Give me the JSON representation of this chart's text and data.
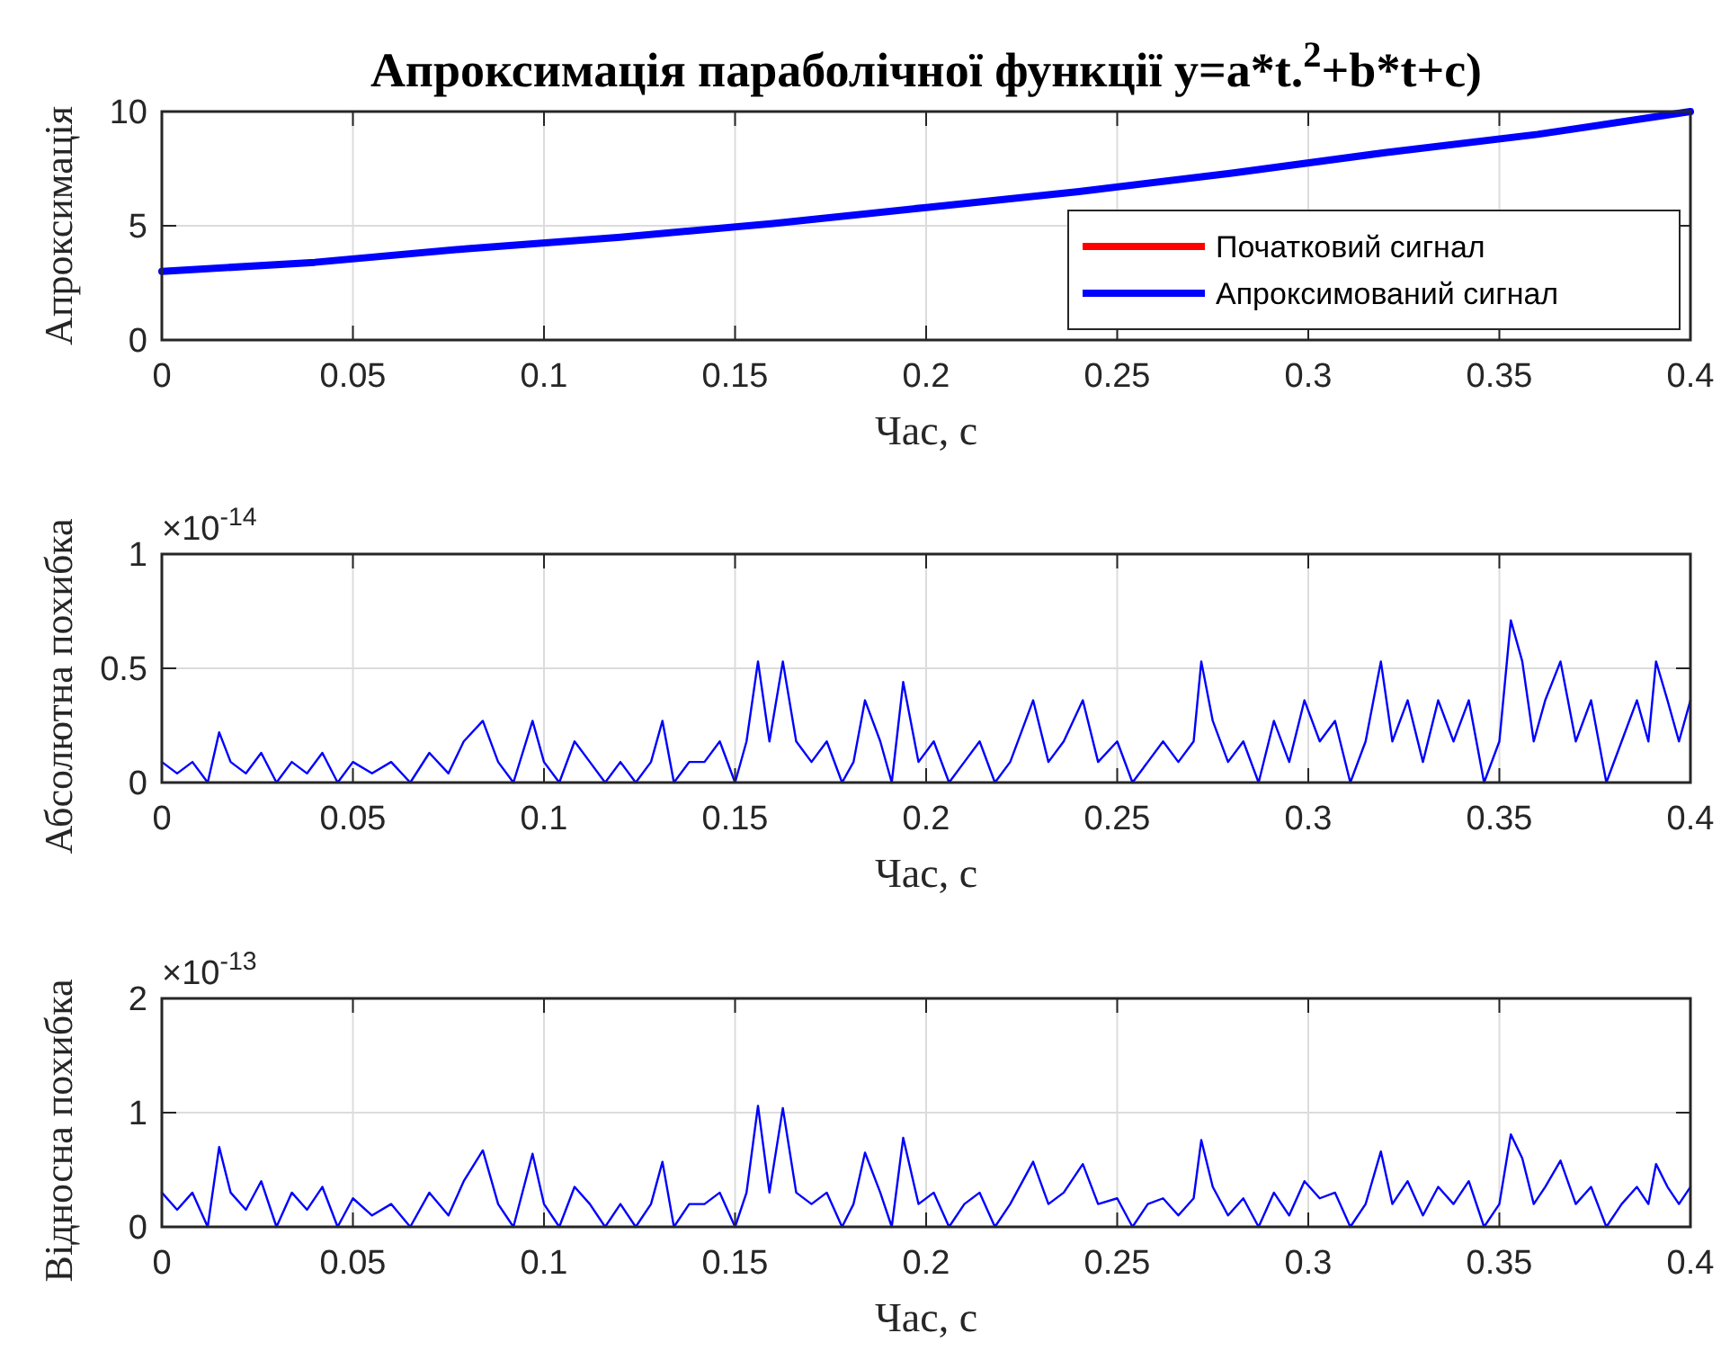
{
  "chart_data": [
    {
      "type": "line",
      "title": "Апроксимація параболічної функції y=a*t.$^{2}$+b*t+c)",
      "xlabel": "Час, с",
      "ylabel": "Апроксимація",
      "xlim": [
        0,
        0.4
      ],
      "ylim": [
        0,
        10
      ],
      "xticks": [
        0,
        0.05,
        0.1,
        0.15,
        0.2,
        0.25,
        0.3,
        0.35,
        0.4
      ],
      "yticks": [
        0,
        5,
        10
      ],
      "grid": true,
      "legend": "bottom right",
      "x": [
        0,
        0.04,
        0.08,
        0.12,
        0.16,
        0.2,
        0.24,
        0.28,
        0.32,
        0.36,
        0.4
      ],
      "series": [
        {
          "name": "Початковий сигнал",
          "color": "#ff0000",
          "values": [
            null,
            null,
            null,
            null,
            null,
            null,
            null,
            null,
            null,
            null,
            null
          ]
        },
        {
          "name": "Апроксимований сигнал",
          "color": "#0000ff",
          "values": [
            3,
            3.4,
            4,
            4.5,
            5.1,
            5.8,
            6.5,
            7.3,
            8.2,
            9,
            10
          ]
        }
      ]
    },
    {
      "type": "line",
      "xlabel": "Час, с",
      "ylabel": "Абсолютна похибка",
      "annotations": [
        "×10$^{-14}$"
      ],
      "xlim": [
        0,
        0.4
      ],
      "ylim": [
        0,
        1
      ],
      "xticks": [
        0,
        0.05,
        0.1,
        0.15,
        0.2,
        0.25,
        0.3,
        0.35,
        0.4
      ],
      "yticks": [
        0,
        0.5,
        1
      ],
      "grid": true,
      "x": [
        0,
        0.004,
        0.008,
        0.012,
        0.015,
        0.018,
        0.022,
        0.026,
        0.03,
        0.034,
        0.038,
        0.042,
        0.046,
        0.05,
        0.055,
        0.06,
        0.065,
        0.07,
        0.075,
        0.079,
        0.084,
        0.088,
        0.092,
        0.097,
        0.1,
        0.104,
        0.108,
        0.112,
        0.116,
        0.12,
        0.124,
        0.128,
        0.131,
        0.134,
        0.138,
        0.142,
        0.146,
        0.15,
        0.153,
        0.156,
        0.159,
        0.1625,
        0.166,
        0.17,
        0.174,
        0.178,
        0.181,
        0.184,
        0.188,
        0.191,
        0.194,
        0.198,
        0.202,
        0.206,
        0.21,
        0.214,
        0.218,
        0.222,
        0.228,
        0.232,
        0.236,
        0.241,
        0.245,
        0.25,
        0.254,
        0.258,
        0.262,
        0.266,
        0.27,
        0.272,
        0.275,
        0.279,
        0.283,
        0.287,
        0.291,
        0.295,
        0.299,
        0.303,
        0.307,
        0.311,
        0.315,
        0.319,
        0.322,
        0.326,
        0.33,
        0.334,
        0.338,
        0.342,
        0.346,
        0.35,
        0.353,
        0.356,
        0.359,
        0.362,
        0.366,
        0.37,
        0.374,
        0.378,
        0.382,
        0.386,
        0.389,
        0.391,
        0.394,
        0.397,
        0.4
      ],
      "series": [
        {
          "color": "#0000ff",
          "values": [
            0.09,
            0.04,
            0.09,
            0,
            0.22,
            0.09,
            0.04,
            0.13,
            0,
            0.09,
            0.04,
            0.13,
            0,
            0.09,
            0.04,
            0.09,
            0,
            0.13,
            0.04,
            0.18,
            0.27,
            0.09,
            0,
            0.27,
            0.09,
            0,
            0.18,
            0.09,
            0,
            0.09,
            0,
            0.09,
            0.27,
            0,
            0.09,
            0.09,
            0.18,
            0,
            0.18,
            0.53,
            0.18,
            0.53,
            0.18,
            0.09,
            0.18,
            0,
            0.09,
            0.36,
            0.18,
            0,
            0.44,
            0.09,
            0.18,
            0,
            0.09,
            0.18,
            0,
            0.09,
            0.36,
            0.09,
            0.18,
            0.36,
            0.09,
            0.18,
            0,
            0.09,
            0.18,
            0.09,
            0.18,
            0.53,
            0.27,
            0.09,
            0.18,
            0,
            0.27,
            0.09,
            0.36,
            0.18,
            0.27,
            0,
            0.18,
            0.53,
            0.18,
            0.36,
            0.09,
            0.36,
            0.18,
            0.36,
            0,
            0.18,
            0.71,
            0.53,
            0.18,
            0.36,
            0.53,
            0.18,
            0.36,
            0,
            0.18,
            0.36,
            0.18,
            0.53,
            0.36,
            0.18,
            0.36
          ]
        }
      ]
    },
    {
      "type": "line",
      "xlabel": "Час, с",
      "ylabel": "Відносна похибка",
      "annotations": [
        "×10$^{-13}$"
      ],
      "xlim": [
        0,
        0.4
      ],
      "ylim": [
        0,
        2
      ],
      "xticks": [
        0,
        0.05,
        0.1,
        0.15,
        0.2,
        0.25,
        0.3,
        0.35,
        0.4
      ],
      "yticks": [
        0,
        1,
        2
      ],
      "grid": true,
      "x": [
        0,
        0.004,
        0.008,
        0.012,
        0.015,
        0.018,
        0.022,
        0.026,
        0.03,
        0.034,
        0.038,
        0.042,
        0.046,
        0.05,
        0.055,
        0.06,
        0.065,
        0.07,
        0.075,
        0.079,
        0.084,
        0.088,
        0.092,
        0.097,
        0.1,
        0.104,
        0.108,
        0.112,
        0.116,
        0.12,
        0.124,
        0.128,
        0.131,
        0.134,
        0.138,
        0.142,
        0.146,
        0.15,
        0.153,
        0.156,
        0.159,
        0.1625,
        0.166,
        0.17,
        0.174,
        0.178,
        0.181,
        0.184,
        0.188,
        0.191,
        0.194,
        0.198,
        0.202,
        0.206,
        0.21,
        0.214,
        0.218,
        0.222,
        0.228,
        0.232,
        0.236,
        0.241,
        0.245,
        0.25,
        0.254,
        0.258,
        0.262,
        0.266,
        0.27,
        0.272,
        0.275,
        0.279,
        0.283,
        0.287,
        0.291,
        0.295,
        0.299,
        0.303,
        0.307,
        0.311,
        0.315,
        0.319,
        0.322,
        0.326,
        0.33,
        0.334,
        0.338,
        0.342,
        0.346,
        0.35,
        0.353,
        0.356,
        0.359,
        0.362,
        0.366,
        0.37,
        0.374,
        0.378,
        0.382,
        0.386,
        0.389,
        0.391,
        0.394,
        0.397,
        0.4
      ],
      "series": [
        {
          "color": "#0000ff",
          "values": [
            0.3,
            0.15,
            0.3,
            0,
            0.7,
            0.3,
            0.15,
            0.4,
            0,
            0.3,
            0.15,
            0.35,
            0,
            0.25,
            0.1,
            0.2,
            0,
            0.3,
            0.1,
            0.4,
            0.67,
            0.2,
            0,
            0.64,
            0.2,
            0,
            0.35,
            0.2,
            0,
            0.2,
            0,
            0.2,
            0.57,
            0,
            0.2,
            0.2,
            0.3,
            0,
            0.3,
            1.06,
            0.3,
            1.04,
            0.3,
            0.2,
            0.3,
            0,
            0.2,
            0.65,
            0.3,
            0,
            0.78,
            0.2,
            0.3,
            0,
            0.2,
            0.3,
            0,
            0.2,
            0.57,
            0.2,
            0.3,
            0.55,
            0.2,
            0.25,
            0,
            0.2,
            0.25,
            0.1,
            0.25,
            0.76,
            0.35,
            0.1,
            0.25,
            0,
            0.3,
            0.1,
            0.4,
            0.25,
            0.3,
            0,
            0.2,
            0.66,
            0.2,
            0.4,
            0.1,
            0.35,
            0.2,
            0.4,
            0,
            0.2,
            0.81,
            0.6,
            0.2,
            0.35,
            0.58,
            0.2,
            0.35,
            0,
            0.2,
            0.35,
            0.2,
            0.55,
            0.35,
            0.2,
            0.35
          ]
        }
      ]
    }
  ]
}
